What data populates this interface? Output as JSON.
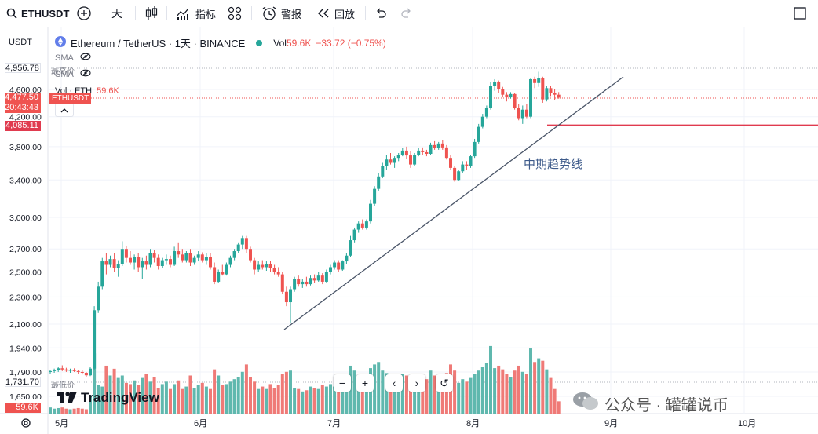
{
  "toolbar": {
    "symbol": "ETHUSDT",
    "interval": "天",
    "indicators_label": "指标",
    "alerts_label": "警报",
    "replay_label": "回放"
  },
  "legend": {
    "symbol_title": "Ethereum / TetherUS · 1天 · BINANCE",
    "vol_label": "Vol",
    "vol_value": "59.6K",
    "change": "−33.72 (−0.75%)",
    "sma1": "SMA",
    "sma2": "SMA",
    "vol_eth_label": "Vol · ETH",
    "vol_eth_value": "59.6K"
  },
  "scale": {
    "currency": "USDT",
    "high_label": "最高价",
    "low_label": "最低价"
  },
  "price_badges": {
    "high": "4,956.78",
    "last": "4,477.50",
    "countdown": "20:43:43",
    "level": "4,085.11",
    "low": "1,731.70",
    "vol": "59.6K",
    "last_symbol": "ETHUSDT"
  },
  "annotation": "中期趋势线",
  "watermark": "公众号 · 罐罐说币",
  "logo_text": "TradingView",
  "nav": [
    "−",
    "+",
    "‹",
    "›",
    "↺"
  ],
  "colors": {
    "up": "#26a69a",
    "down": "#ef5350",
    "line": "#e03b4f"
  },
  "chart_data": {
    "type": "candlestick",
    "title": "Ethereum / TetherUS · 1天 · BINANCE",
    "y_ticks": [
      4600,
      4200,
      3800,
      3400,
      3000,
      2700,
      2500,
      2300,
      2100,
      1940,
      1790,
      1650
    ],
    "y_tick_labels": [
      "4,600.00",
      "4,200.00",
      "3,800.00",
      "3,400.00",
      "3,000.00",
      "2,700.00",
      "2,500.00",
      "2,300.00",
      "2,100.00",
      "1,940.00",
      "1,790.00",
      "1,650.00"
    ],
    "x_labels": [
      "5月",
      "6月",
      "7月",
      "8月",
      "9月",
      "10月"
    ],
    "horizontal_level": 4085.11,
    "candles": [
      [
        1790,
        1800,
        1780,
        1795
      ],
      [
        1795,
        1810,
        1785,
        1800
      ],
      [
        1800,
        1820,
        1790,
        1812
      ],
      [
        1812,
        1830,
        1795,
        1805
      ],
      [
        1805,
        1815,
        1790,
        1798
      ],
      [
        1798,
        1810,
        1785,
        1802
      ],
      [
        1802,
        1812,
        1790,
        1795
      ],
      [
        1795,
        1800,
        1780,
        1790
      ],
      [
        1790,
        1800,
        1775,
        1785
      ],
      [
        1785,
        1790,
        1760,
        1770
      ],
      [
        1770,
        1820,
        1765,
        1810
      ],
      [
        1810,
        2230,
        1800,
        2200
      ],
      [
        2200,
        2420,
        2180,
        2380
      ],
      [
        2380,
        2620,
        2360,
        2590
      ],
      [
        2590,
        2660,
        2480,
        2560
      ],
      [
        2560,
        2640,
        2540,
        2610
      ],
      [
        2610,
        2660,
        2500,
        2530
      ],
      [
        2530,
        2600,
        2460,
        2570
      ],
      [
        2570,
        2770,
        2550,
        2700
      ],
      [
        2700,
        2730,
        2580,
        2620
      ],
      [
        2620,
        2680,
        2560,
        2580
      ],
      [
        2580,
        2650,
        2520,
        2630
      ],
      [
        2630,
        2660,
        2500,
        2540
      ],
      [
        2540,
        2620,
        2440,
        2590
      ],
      [
        2590,
        2640,
        2520,
        2560
      ],
      [
        2560,
        2700,
        2540,
        2660
      ],
      [
        2660,
        2690,
        2580,
        2620
      ],
      [
        2620,
        2650,
        2520,
        2550
      ],
      [
        2550,
        2620,
        2530,
        2600
      ],
      [
        2600,
        2650,
        2560,
        2610
      ],
      [
        2610,
        2640,
        2540,
        2560
      ],
      [
        2560,
        2720,
        2550,
        2680
      ],
      [
        2680,
        2760,
        2620,
        2650
      ],
      [
        2650,
        2700,
        2580,
        2600
      ],
      [
        2600,
        2680,
        2580,
        2660
      ],
      [
        2660,
        2700,
        2550,
        2580
      ],
      [
        2580,
        2640,
        2560,
        2620
      ],
      [
        2620,
        2680,
        2590,
        2650
      ],
      [
        2650,
        2670,
        2580,
        2600
      ],
      [
        2600,
        2660,
        2560,
        2630
      ],
      [
        2630,
        2660,
        2520,
        2540
      ],
      [
        2540,
        2580,
        2400,
        2420
      ],
      [
        2420,
        2520,
        2410,
        2500
      ],
      [
        2500,
        2560,
        2470,
        2480
      ],
      [
        2480,
        2580,
        2470,
        2560
      ],
      [
        2560,
        2640,
        2540,
        2620
      ],
      [
        2620,
        2700,
        2600,
        2680
      ],
      [
        2680,
        2760,
        2660,
        2740
      ],
      [
        2740,
        2820,
        2700,
        2800
      ],
      [
        2800,
        2820,
        2660,
        2700
      ],
      [
        2700,
        2720,
        2580,
        2600
      ],
      [
        2600,
        2620,
        2480,
        2520
      ],
      [
        2520,
        2590,
        2500,
        2560
      ],
      [
        2560,
        2600,
        2520,
        2540
      ],
      [
        2540,
        2590,
        2510,
        2570
      ],
      [
        2570,
        2590,
        2500,
        2530
      ],
      [
        2530,
        2560,
        2480,
        2500
      ],
      [
        2500,
        2540,
        2460,
        2480
      ],
      [
        2480,
        2500,
        2320,
        2340
      ],
      [
        2340,
        2380,
        2230,
        2260
      ],
      [
        2260,
        2380,
        2110,
        2360
      ],
      [
        2360,
        2460,
        2340,
        2440
      ],
      [
        2440,
        2470,
        2380,
        2400
      ],
      [
        2400,
        2440,
        2370,
        2420
      ],
      [
        2420,
        2460,
        2380,
        2400
      ],
      [
        2400,
        2470,
        2390,
        2450
      ],
      [
        2450,
        2480,
        2410,
        2430
      ],
      [
        2430,
        2500,
        2420,
        2470
      ],
      [
        2470,
        2490,
        2400,
        2420
      ],
      [
        2420,
        2520,
        2410,
        2500
      ],
      [
        2500,
        2560,
        2480,
        2540
      ],
      [
        2540,
        2600,
        2520,
        2580
      ],
      [
        2580,
        2600,
        2500,
        2520
      ],
      [
        2520,
        2600,
        2510,
        2590
      ],
      [
        2590,
        2660,
        2570,
        2640
      ],
      [
        2640,
        2820,
        2630,
        2780
      ],
      [
        2780,
        2900,
        2760,
        2880
      ],
      [
        2880,
        2960,
        2850,
        2940
      ],
      [
        2940,
        2980,
        2880,
        2900
      ],
      [
        2900,
        2980,
        2880,
        2960
      ],
      [
        2960,
        3180,
        2940,
        3140
      ],
      [
        3140,
        3330,
        3120,
        3300
      ],
      [
        3300,
        3480,
        3280,
        3440
      ],
      [
        3440,
        3600,
        3420,
        3560
      ],
      [
        3560,
        3700,
        3520,
        3640
      ],
      [
        3640,
        3720,
        3580,
        3600
      ],
      [
        3600,
        3680,
        3540,
        3660
      ],
      [
        3660,
        3720,
        3620,
        3700
      ],
      [
        3700,
        3780,
        3680,
        3750
      ],
      [
        3750,
        3800,
        3650,
        3690
      ],
      [
        3690,
        3740,
        3540,
        3580
      ],
      [
        3580,
        3720,
        3560,
        3700
      ],
      [
        3700,
        3780,
        3680,
        3750
      ],
      [
        3750,
        3790,
        3700,
        3730
      ],
      [
        3730,
        3760,
        3680,
        3710
      ],
      [
        3710,
        3850,
        3700,
        3820
      ],
      [
        3820,
        3870,
        3760,
        3780
      ],
      [
        3780,
        3860,
        3760,
        3840
      ],
      [
        3840,
        3880,
        3760,
        3790
      ],
      [
        3790,
        3820,
        3640,
        3660
      ],
      [
        3660,
        3700,
        3520,
        3540
      ],
      [
        3540,
        3560,
        3380,
        3400
      ],
      [
        3400,
        3520,
        3390,
        3500
      ],
      [
        3500,
        3620,
        3480,
        3580
      ],
      [
        3580,
        3620,
        3520,
        3560
      ],
      [
        3560,
        3700,
        3540,
        3680
      ],
      [
        3680,
        3900,
        3660,
        3860
      ],
      [
        3860,
        4100,
        3840,
        4060
      ],
      [
        4060,
        4240,
        4040,
        4200
      ],
      [
        4200,
        4360,
        4180,
        4320
      ],
      [
        4320,
        4720,
        4300,
        4650
      ],
      [
        4650,
        4760,
        4580,
        4720
      ],
      [
        4720,
        4740,
        4550,
        4600
      ],
      [
        4600,
        4640,
        4480,
        4520
      ],
      [
        4520,
        4560,
        4420,
        4480
      ],
      [
        4480,
        4560,
        4460,
        4530
      ],
      [
        4530,
        4550,
        4300,
        4330
      ],
      [
        4330,
        4380,
        4150,
        4180
      ],
      [
        4180,
        4360,
        4100,
        4300
      ],
      [
        4300,
        4380,
        4180,
        4200
      ],
      [
        4200,
        4780,
        4180,
        4760
      ],
      [
        4760,
        4800,
        4620,
        4700
      ],
      [
        4700,
        4880,
        4640,
        4780
      ],
      [
        4780,
        4800,
        4400,
        4450
      ],
      [
        4450,
        4660,
        4420,
        4620
      ],
      [
        4620,
        4660,
        4500,
        4540
      ],
      [
        4540,
        4600,
        4440,
        4520
      ],
      [
        4520,
        4560,
        4460,
        4477
      ]
    ],
    "volume": [
      10,
      8,
      9,
      10,
      8,
      7,
      8,
      9,
      8,
      7,
      30,
      98,
      46,
      44,
      78,
      62,
      73,
      58,
      62,
      50,
      48,
      54,
      46,
      58,
      64,
      52,
      60,
      42,
      48,
      52,
      40,
      48,
      54,
      40,
      44,
      62,
      42,
      46,
      50,
      44,
      40,
      72,
      62,
      46,
      48,
      52,
      56,
      60,
      68,
      80,
      60,
      52,
      40,
      44,
      40,
      48,
      42,
      46,
      64,
      68,
      70,
      42,
      40,
      36,
      38,
      44,
      42,
      40,
      46,
      44,
      48,
      44,
      40,
      52,
      56,
      78,
      70,
      62,
      58,
      60,
      74,
      80,
      84,
      70,
      66,
      60,
      58,
      56,
      64,
      62,
      58,
      56,
      60,
      52,
      56,
      70,
      62,
      58,
      60,
      66,
      80,
      70,
      50,
      56,
      52,
      58,
      64,
      70,
      76,
      82,
      110,
      74,
      78,
      72,
      64,
      60,
      70,
      78,
      68,
      64,
      106,
      84,
      90,
      86,
      72,
      58,
      40,
      20
    ]
  }
}
